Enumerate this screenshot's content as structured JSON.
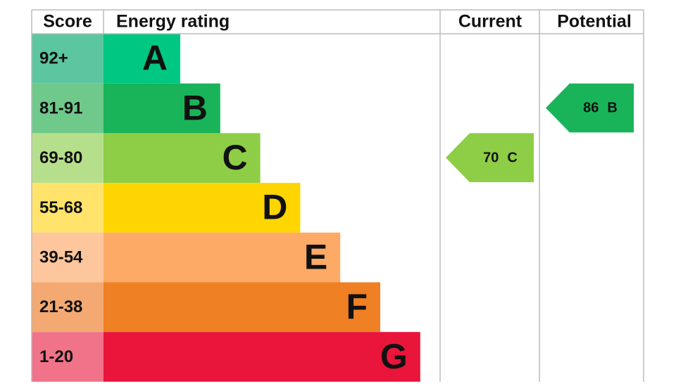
{
  "headers": {
    "score": "Score",
    "rating": "Energy rating",
    "current": "Current",
    "potential": "Potential"
  },
  "bands": [
    {
      "score": "92+",
      "letter": "A",
      "color": "#00c781",
      "score_color": "#5cc6a0"
    },
    {
      "score": "81-91",
      "letter": "B",
      "color": "#19b459",
      "score_color": "#6ec98b"
    },
    {
      "score": "69-80",
      "letter": "C",
      "color": "#8dce46",
      "score_color": "#b6df8c"
    },
    {
      "score": "55-68",
      "letter": "D",
      "color": "#ffd500",
      "score_color": "#ffe36b"
    },
    {
      "score": "39-54",
      "letter": "E",
      "color": "#fcaa65",
      "score_color": "#fdc69c"
    },
    {
      "score": "21-38",
      "letter": "F",
      "color": "#ef8023",
      "score_color": "#f3a971"
    },
    {
      "score": "1-20",
      "letter": "G",
      "color": "#e9153b",
      "score_color": "#f07389"
    }
  ],
  "current": {
    "value": 70,
    "letter": "C"
  },
  "potential": {
    "value": 86,
    "letter": "B"
  }
}
